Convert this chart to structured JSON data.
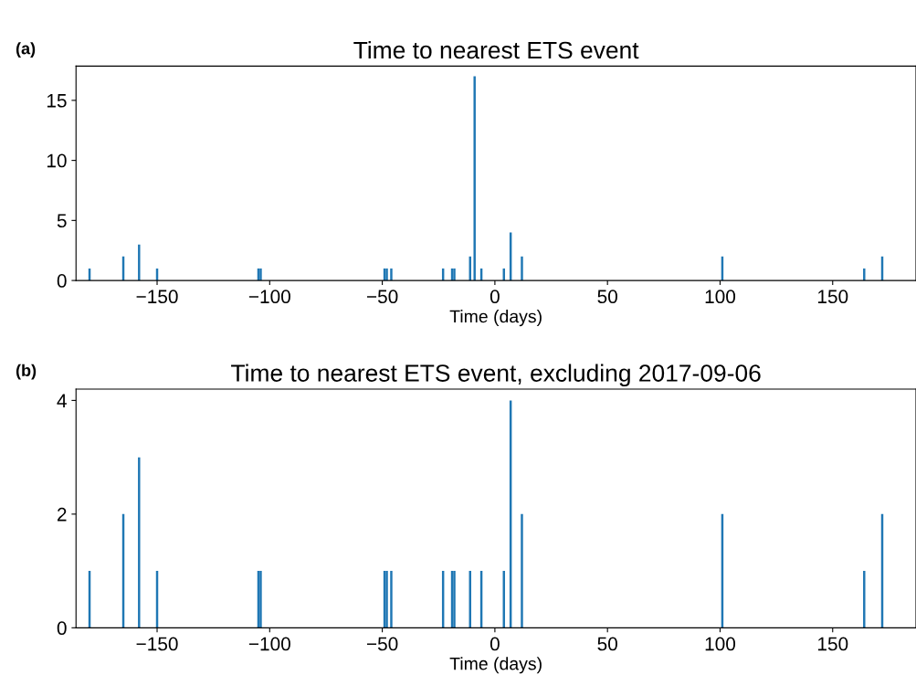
{
  "chart_data": [
    {
      "type": "bar",
      "title": "Time to nearest ETS event",
      "xlabel": "Time (days)",
      "annotations": [
        "(a)"
      ],
      "x": [
        -180,
        -165,
        -158,
        -150,
        -105,
        -104,
        -49,
        -48,
        -46,
        -23,
        -19,
        -18,
        -11,
        -9,
        -6,
        4,
        7,
        12,
        101,
        164,
        172
      ],
      "values": [
        1,
        2,
        3,
        1,
        1,
        1,
        1,
        1,
        1,
        1,
        1,
        1,
        2,
        17,
        1,
        1,
        4,
        2,
        2,
        1,
        2
      ],
      "color": "#1f77b4",
      "xlim": [
        -186,
        187
      ],
      "xticks": [
        {
          "value": -150,
          "label": "−150"
        },
        {
          "value": -100,
          "label": "−100"
        },
        {
          "value": -50,
          "label": "−50"
        },
        0,
        50,
        100,
        150
      ],
      "ylim": [
        0,
        17.85
      ],
      "yticks": [
        0,
        5,
        10,
        15
      ],
      "grid": false,
      "legend": false
    },
    {
      "type": "bar",
      "title": "Time to nearest ETS event, excluding 2017-09-06",
      "xlabel": "Time (days)",
      "annotations": [
        "(b)"
      ],
      "x": [
        -180,
        -165,
        -158,
        -150,
        -105,
        -104,
        -49,
        -48,
        -46,
        -23,
        -19,
        -18,
        -11,
        -6,
        4,
        7,
        12,
        101,
        164,
        172
      ],
      "values": [
        1,
        2,
        3,
        1,
        1,
        1,
        1,
        1,
        1,
        1,
        1,
        1,
        1,
        1,
        1,
        4,
        2,
        2,
        1,
        2
      ],
      "color": "#1f77b4",
      "xlim": [
        -186,
        187
      ],
      "xticks": [
        {
          "value": -150,
          "label": "−150"
        },
        {
          "value": -100,
          "label": "−100"
        },
        {
          "value": -50,
          "label": "−50"
        },
        0,
        50,
        100,
        150
      ],
      "ylim": [
        0,
        4.2
      ],
      "yticks": [
        0,
        2,
        4
      ],
      "grid": false,
      "legend": false
    }
  ]
}
